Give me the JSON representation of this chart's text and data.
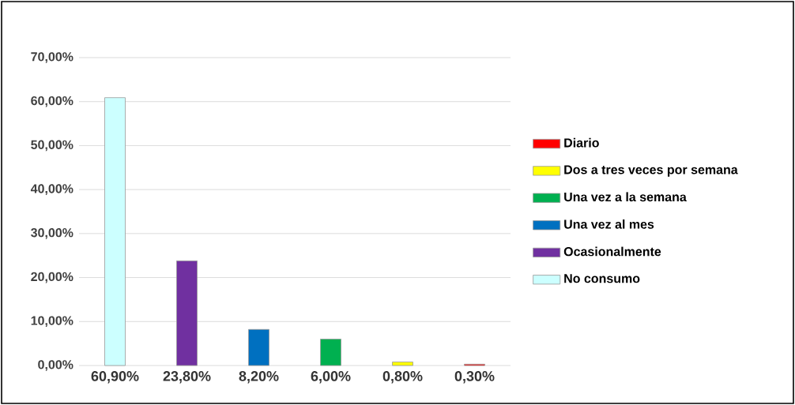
{
  "chart_data": {
    "type": "bar",
    "categories": [
      null,
      null,
      null,
      null,
      null,
      null
    ],
    "series": [
      {
        "name": "No consumo",
        "color": "#ccffff",
        "values": [
          60.9,
          null,
          null,
          null,
          null,
          null
        ],
        "value_labels": [
          "60,90%",
          null,
          null,
          null,
          null,
          null
        ]
      },
      {
        "name": "Ocasionalmente",
        "color": "#7030a0",
        "values": [
          null,
          23.8,
          null,
          null,
          null,
          null
        ],
        "value_labels": [
          null,
          "23,80%",
          null,
          null,
          null,
          null
        ]
      },
      {
        "name": "Una vez al mes",
        "color": "#0070c0",
        "values": [
          null,
          null,
          8.2,
          null,
          null,
          null
        ],
        "value_labels": [
          null,
          null,
          "8,20%",
          null,
          null,
          null
        ]
      },
      {
        "name": "Una vez a la semana",
        "color": "#00b050",
        "values": [
          null,
          null,
          null,
          6.0,
          null,
          null
        ],
        "value_labels": [
          null,
          null,
          null,
          "6,00%",
          null,
          null
        ]
      },
      {
        "name": "Dos a tres veces por semana",
        "color": "#ffff00",
        "values": [
          null,
          null,
          null,
          null,
          0.8,
          null
        ],
        "value_labels": [
          null,
          null,
          null,
          null,
          "0,80%",
          null
        ]
      },
      {
        "name": "Diario",
        "color": "#ff0000",
        "values": [
          null,
          null,
          null,
          null,
          null,
          0.3
        ],
        "value_labels": [
          null,
          null,
          null,
          null,
          null,
          "0,30%"
        ]
      }
    ],
    "ylim": [
      0,
      70
    ],
    "yticks": [
      {
        "value": 0,
        "label": "0,00%"
      },
      {
        "value": 10,
        "label": "10,00%"
      },
      {
        "value": 20,
        "label": "20,00%"
      },
      {
        "value": 30,
        "label": "30,00%"
      },
      {
        "value": 40,
        "label": "40,00%"
      },
      {
        "value": 50,
        "label": "50,00%"
      },
      {
        "value": 60,
        "label": "60,00%"
      },
      {
        "value": 70,
        "label": "70,00%"
      }
    ],
    "grid": "y",
    "legend": "right"
  }
}
